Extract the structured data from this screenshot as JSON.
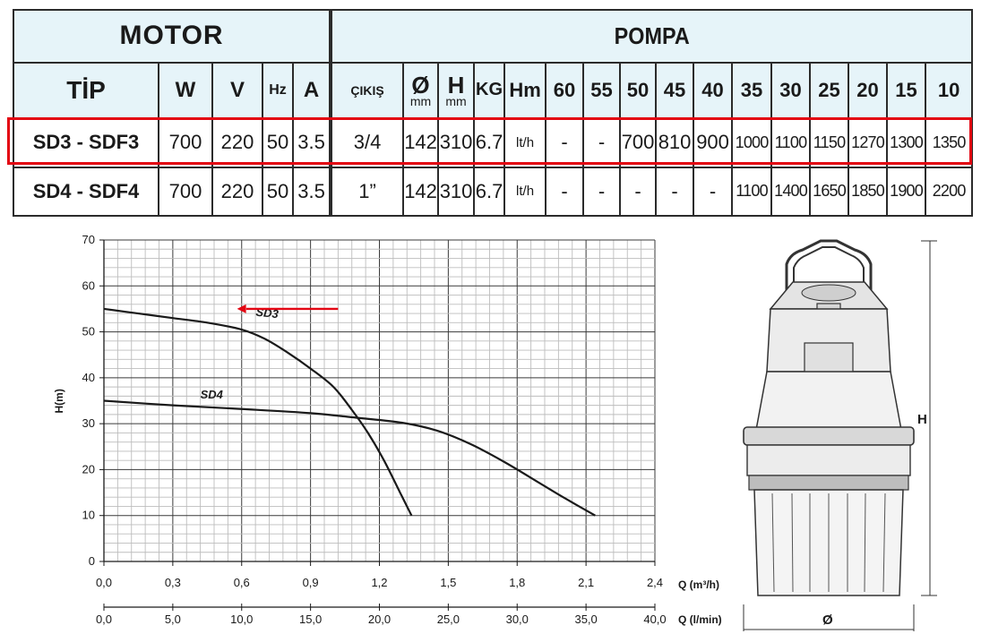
{
  "table": {
    "group_motor": "MOTOR",
    "group_pompa": "POMPA",
    "headers": {
      "tip": "TİP",
      "w": "W",
      "v": "V",
      "hz": "Hz",
      "a": "A",
      "cikis": "ÇIKIŞ",
      "dia_symbol": "Ø",
      "dia_unit": "mm",
      "h_symbol": "H",
      "h_unit": "mm",
      "kg": "KG",
      "hm": "Hm",
      "heads": [
        "60",
        "55",
        "50",
        "45",
        "40",
        "35",
        "30",
        "25",
        "20",
        "15",
        "10"
      ]
    },
    "rows": [
      {
        "tip": "SD3 - SDF3",
        "w": "700",
        "v": "220",
        "hz": "50",
        "a": "3.5",
        "cikis": "3/4",
        "dia": "142",
        "h": "310",
        "kg": "6.7",
        "unit": "lt/h",
        "flows": [
          "-",
          "-",
          "700",
          "810",
          "900",
          "1000",
          "1100",
          "1150",
          "1270",
          "1300",
          "1350"
        ]
      },
      {
        "tip": "SD4 - SDF4",
        "w": "700",
        "v": "220",
        "hz": "50",
        "a": "3.5",
        "cikis": "1”",
        "dia": "142",
        "h": "310",
        "kg": "6.7",
        "unit": "lt/h",
        "flows": [
          "-",
          "-",
          "-",
          "-",
          "-",
          "1100",
          "1400",
          "1650",
          "1850",
          "1900",
          "2200"
        ]
      }
    ]
  },
  "chart_data": {
    "type": "line",
    "ylabel": "H(m)",
    "xlabel": "Q (m³/h)",
    "xlabel2": "Q (l/min)",
    "xlim": [
      0,
      2.4
    ],
    "ylim": [
      0,
      70
    ],
    "x_ticks": [
      "0,0",
      "0,3",
      "0,6",
      "0,9",
      "1,2",
      "1,5",
      "1,8",
      "2,1",
      "2,4"
    ],
    "x2_ticks": [
      "0,0",
      "5,0",
      "10,0",
      "15,0",
      "20,0",
      "25,0",
      "30,0",
      "35,0",
      "40,0"
    ],
    "y_ticks": [
      "0",
      "10",
      "20",
      "30",
      "40",
      "50",
      "60",
      "70"
    ],
    "grid": true,
    "series": [
      {
        "name": "SD3",
        "x": [
          0.0,
          0.15,
          0.3,
          0.45,
          0.6,
          0.7,
          0.8,
          0.9,
          1.0,
          1.08,
          1.15,
          1.22,
          1.29,
          1.34
        ],
        "y": [
          55,
          54,
          53,
          52,
          50.5,
          48.5,
          45.5,
          42,
          38,
          33,
          28,
          22,
          15,
          10
        ]
      },
      {
        "name": "SD4",
        "x": [
          0.0,
          0.3,
          0.6,
          0.9,
          1.1,
          1.3,
          1.45,
          1.6,
          1.75,
          1.9,
          2.0,
          2.14
        ],
        "y": [
          35,
          34,
          33.2,
          32.3,
          31.3,
          30.2,
          28.5,
          25.5,
          21.5,
          17,
          14,
          10
        ]
      }
    ],
    "annotation_color": "#e30613"
  },
  "pump": {
    "height_label": "H",
    "diameter_label": "Ø"
  },
  "colors": {
    "highlight": "#e30613",
    "header_bg": "#e6f4f9"
  }
}
